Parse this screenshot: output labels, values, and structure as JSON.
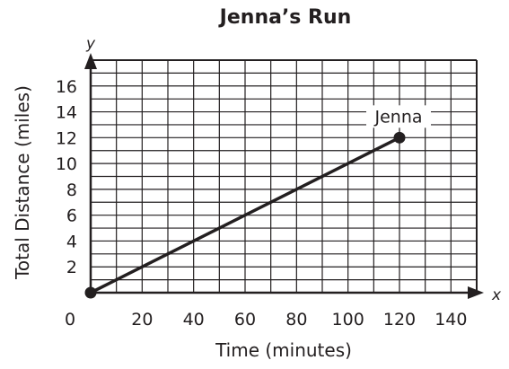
{
  "chart_data": {
    "type": "line",
    "title": "Jenna’s Run",
    "xlabel": "Time (minutes)",
    "ylabel": "Total Distance (miles)",
    "x_axis_letter": "x",
    "y_axis_letter": "y",
    "xlim": [
      0,
      150
    ],
    "ylim": [
      0,
      18
    ],
    "grid": true,
    "x_grid_step": 10,
    "y_grid_step": 1,
    "x_ticks": [
      0,
      20,
      40,
      60,
      80,
      100,
      120,
      140
    ],
    "y_ticks": [
      2,
      4,
      6,
      8,
      10,
      12,
      14,
      16
    ],
    "series": [
      {
        "name": "Jenna",
        "x": [
          0,
          120
        ],
        "y": [
          0,
          12
        ]
      }
    ],
    "annotations": [
      {
        "text": "Jenna",
        "x": 120,
        "y": 12
      }
    ],
    "colors": {
      "ink": "#231f20",
      "grid": "#231f20",
      "background": "#ffffff"
    }
  }
}
